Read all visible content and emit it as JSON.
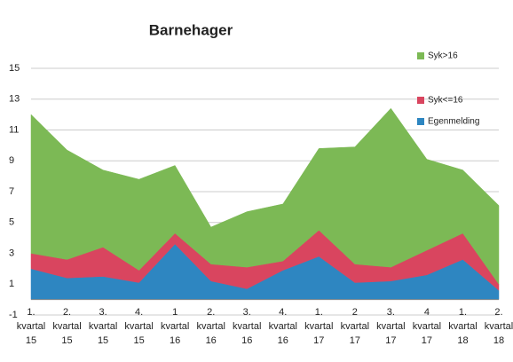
{
  "chart_data": {
    "type": "stacked_area",
    "title": "Barnehager",
    "categories": [
      "1. kvartal 15",
      "2. kvartal 15",
      "3. kvartal 15",
      "4. kvartal 15",
      "1 kvartal 16",
      "2. kvartal 16",
      "3. kvartal 16",
      "4. kvartal 16",
      "1. kvartal 17",
      "2 kvartal 17",
      "3. kvartal 17",
      "4 kvartal 17",
      "1. kvartal 18",
      "2. kvartal 18"
    ],
    "series": [
      {
        "name": "Egenmelding",
        "color": "#2e86c1",
        "values": [
          2.0,
          1.4,
          1.5,
          1.1,
          3.6,
          1.2,
          0.7,
          1.9,
          2.8,
          1.1,
          1.2,
          1.6,
          2.6,
          0.6
        ]
      },
      {
        "name": "Syk<=16",
        "color": "#d9455f",
        "values": [
          1.0,
          1.2,
          1.9,
          0.8,
          0.7,
          1.1,
          1.4,
          0.6,
          1.7,
          1.2,
          0.9,
          1.6,
          1.7,
          0.4
        ]
      },
      {
        "name": "Syk>16",
        "color": "#7cb955",
        "values": [
          9.0,
          7.1,
          5.0,
          5.9,
          4.4,
          2.4,
          3.6,
          3.7,
          5.3,
          7.6,
          10.3,
          5.9,
          4.1,
          5.1
        ]
      }
    ],
    "ylim": [
      -1,
      15
    ],
    "yticks": [
      -1,
      1,
      3,
      5,
      7,
      9,
      11,
      13,
      15
    ],
    "grid": true
  }
}
